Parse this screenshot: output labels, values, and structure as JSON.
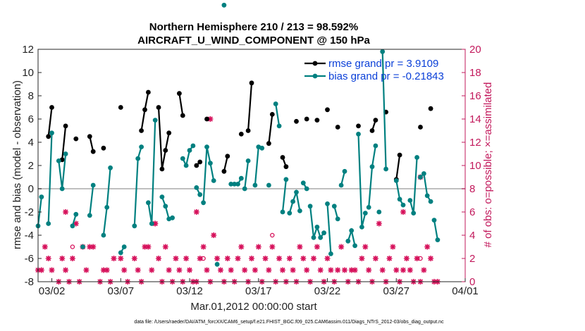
{
  "chart_data": {
    "type": "line",
    "title": [
      "Northern Hemisphere 210 / 213 = 98.592%",
      "AIRCRAFT_U_WIND_COMPONENT @ 150 hPa"
    ],
    "xlabel": "Mar.01,2012 00:00:00 start",
    "ylabel": "rmse and bias (model - observation)",
    "y2label": "# of obs: o=possible; ×=assimilated",
    "xlim": [
      1,
      32
    ],
    "ylim": [
      -8,
      12
    ],
    "y2lim": [
      0,
      20
    ],
    "x_ticks": [
      2,
      7,
      12,
      17,
      22,
      27,
      32
    ],
    "x_tick_labels": [
      "03/02",
      "03/07",
      "03/12",
      "03/17",
      "03/22",
      "03/27",
      "04/01"
    ],
    "y_ticks": [
      -8,
      -6,
      -4,
      -2,
      0,
      2,
      4,
      6,
      8,
      10,
      12
    ],
    "y_tick_labels": [
      "-8",
      "-6",
      "-4",
      "-2",
      "0",
      "2",
      "4",
      "6",
      "8",
      "10",
      "12"
    ],
    "y2_ticks": [
      0,
      2,
      4,
      6,
      8,
      10,
      12,
      14,
      16,
      18,
      20
    ],
    "y2_tick_labels": [
      "0",
      "2",
      "4",
      "6",
      "8",
      "10",
      "12",
      "14",
      "16",
      "18",
      "20"
    ],
    "legend_position": "top-right",
    "zero_line": 0,
    "footer": "data file: /Users/raeder/DAI/ATM_forcXX/CAM6_setup/f.e21.FHIST_BGC.f09_025.CAM6assim.011/Diags_NTrS_2012-03/obs_diag_output.nc",
    "colors": {
      "rmse": "#000000",
      "bias": "#008080",
      "obs": "#d6105a",
      "axis2": "#c2185b",
      "legend_text": "#0a3fd8",
      "zero": "#bfbfbf"
    },
    "series": [
      {
        "name": "rmse grand pr = 3.9109",
        "color": "#000000",
        "segments": [
          [
            [
              1.75,
              4.5
            ],
            [
              2.0,
              7.0
            ]
          ],
          [
            [
              2.75,
              2.5
            ],
            [
              3.0,
              5.4
            ]
          ],
          [
            [
              3.75,
              4.3
            ]
          ],
          [
            [
              4.75,
              4.5
            ],
            [
              5.0,
              3.2
            ]
          ],
          [
            [
              5.75,
              3.5
            ]
          ],
          [
            [
              7.0,
              7.0
            ]
          ],
          [
            [
              8.5,
              5.0
            ],
            [
              8.75,
              6.8
            ],
            [
              9.0,
              8.3
            ]
          ],
          [
            [
              9.75,
              7.0
            ],
            [
              10.0,
              1.7
            ],
            [
              10.25,
              3.3
            ],
            [
              10.5,
              4.8
            ]
          ],
          [
            [
              11.25,
              8.2
            ],
            [
              11.5,
              6.3
            ]
          ],
          [
            [
              12.5,
              2.0
            ],
            [
              12.75,
              2.3
            ]
          ],
          [
            [
              13.25,
              6.0
            ]
          ],
          [
            [
              14.5,
              1.5
            ],
            [
              14.75,
              2.8
            ]
          ],
          [
            [
              15.75,
              4.7
            ]
          ],
          [
            [
              16.25,
              5.0
            ],
            [
              16.5,
              9.1
            ]
          ],
          [
            [
              17.75,
              3.9
            ],
            [
              18.0,
              6.4
            ]
          ],
          [
            [
              18.75,
              2.7
            ],
            [
              19.0,
              1.9
            ]
          ],
          [
            [
              19.75,
              5.8
            ]
          ],
          [
            [
              20.5,
              6.0
            ]
          ],
          [
            [
              21.25,
              5.9
            ]
          ],
          [
            [
              22.0,
              6.8
            ]
          ],
          [
            [
              22.75,
              5.3
            ]
          ],
          [
            [
              24.25,
              5.4
            ]
          ],
          [
            [
              25.25,
              5.0
            ],
            [
              25.5,
              5.9
            ]
          ],
          [
            [
              26.25,
              6.6
            ]
          ],
          [
            [
              27.0,
              0.8
            ],
            [
              27.25,
              2.9
            ]
          ],
          [
            [
              28.75,
              5.3
            ]
          ],
          [
            [
              29.5,
              6.9
            ]
          ]
        ]
      },
      {
        "name": "bias grand pr = -0.21843",
        "color": "#008080",
        "segments": [
          [
            [
              1.0,
              -3.2
            ],
            [
              1.25,
              -0.7
            ]
          ],
          [
            [
              1.75,
              -3.0
            ],
            [
              2.0,
              4.8
            ]
          ],
          [
            [
              2.5,
              2.4
            ],
            [
              2.75,
              0.0
            ],
            [
              3.0,
              3.0
            ]
          ],
          [
            [
              3.5,
              -3.2
            ],
            [
              3.75,
              -2.2
            ]
          ],
          [
            [
              4.25,
              -5.0
            ]
          ],
          [
            [
              4.75,
              -2.3
            ],
            [
              5.0,
              0.3
            ]
          ],
          [
            [
              5.75,
              -4.0
            ],
            [
              6.0,
              -1.6
            ],
            [
              6.25,
              1.8
            ]
          ],
          [
            [
              7.0,
              -5.5
            ],
            [
              7.25,
              -5.0
            ]
          ],
          [
            [
              8.0,
              -3.2
            ],
            [
              8.25,
              2.6
            ],
            [
              8.5,
              3.6
            ]
          ],
          [
            [
              9.0,
              -1.2
            ],
            [
              9.25,
              -3.0
            ],
            [
              9.5,
              5.9
            ]
          ],
          [
            [
              10.0,
              -0.7
            ],
            [
              10.25,
              -1.5
            ],
            [
              10.5,
              -2.6
            ],
            [
              10.75,
              -2.5
            ]
          ],
          [
            [
              11.5,
              2.6
            ],
            [
              11.75,
              2.0
            ],
            [
              12.0,
              3.3
            ],
            [
              12.25,
              3.7
            ]
          ],
          [
            [
              12.5,
              0.1
            ],
            [
              12.75,
              -0.5
            ]
          ],
          [
            [
              13.0,
              -1.2
            ],
            [
              13.25,
              3.6
            ],
            [
              13.5,
              2.2
            ],
            [
              13.75,
              0.7
            ]
          ],
          [
            [
              14.0,
              -6.5
            ]
          ],
          [
            [
              14.5,
              15.8
            ]
          ],
          [
            [
              15.0,
              0.4
            ],
            [
              15.25,
              0.4
            ],
            [
              15.5,
              0.4
            ],
            [
              15.75,
              0.9
            ]
          ],
          [
            [
              16.0,
              0.0
            ],
            [
              16.25,
              2.4
            ]
          ],
          [
            [
              16.75,
              0.3
            ],
            [
              17.0,
              3.6
            ],
            [
              17.25,
              3.5
            ]
          ],
          [
            [
              17.75,
              0.3
            ]
          ],
          [
            [
              18.25,
              7.3
            ],
            [
              18.5,
              5.4
            ]
          ],
          [
            [
              18.75,
              -2.0
            ],
            [
              19.0,
              0.8
            ]
          ],
          [
            [
              19.25,
              -2.1
            ],
            [
              19.5,
              -1.1
            ],
            [
              19.75,
              -0.3
            ],
            [
              20.0,
              -1.9
            ]
          ],
          [
            [
              20.25,
              0.5
            ],
            [
              20.5,
              0.0
            ]
          ],
          [
            [
              20.75,
              -1.5
            ],
            [
              21.0,
              -4.2
            ],
            [
              21.25,
              -3.3
            ],
            [
              21.5,
              -4.2
            ],
            [
              21.75,
              -3.8
            ]
          ],
          [
            [
              22.0,
              -1.3
            ],
            [
              22.25,
              -5.6
            ]
          ],
          [
            [
              22.5,
              -1.5
            ],
            [
              22.75,
              -2.6
            ]
          ],
          [
            [
              23.0,
              0.3
            ],
            [
              23.25,
              1.5
            ]
          ],
          [
            [
              23.5,
              -4.5
            ],
            [
              23.75,
              -3.6
            ],
            [
              24.0,
              -4.9
            ]
          ],
          [
            [
              24.25,
              4.7
            ],
            [
              24.5,
              -3.3
            ],
            [
              24.75,
              -2.1
            ]
          ],
          [
            [
              25.0,
              -1.6
            ],
            [
              25.25,
              1.9
            ],
            [
              25.5,
              3.7
            ]
          ],
          [
            [
              25.75,
              -2.0
            ]
          ],
          [
            [
              26.0,
              11.8
            ],
            [
              26.25,
              1.7
            ]
          ],
          [
            [
              27.0,
              0.7
            ],
            [
              27.25,
              -0.9
            ],
            [
              27.5,
              -1.4
            ]
          ],
          [
            [
              28.0,
              -1.0
            ],
            [
              28.25,
              -2.1
            ],
            [
              28.5,
              2.7
            ]
          ],
          [
            [
              28.75,
              1.0
            ],
            [
              29.0,
              1.3
            ],
            [
              29.25,
              -0.6
            ],
            [
              29.5,
              -1.1
            ]
          ],
          [
            [
              29.75,
              -2.7
            ],
            [
              30.0,
              -4.4
            ]
          ]
        ]
      }
    ],
    "obs_assimilated": [
      [
        1.0,
        1
      ],
      [
        1.25,
        1
      ],
      [
        1.5,
        3
      ],
      [
        1.75,
        2
      ],
      [
        2.0,
        1
      ],
      [
        2.5,
        0
      ],
      [
        2.75,
        2
      ],
      [
        3.0,
        1
      ],
      [
        3.25,
        0
      ],
      [
        3.5,
        2
      ],
      [
        3.75,
        5
      ],
      [
        4.0,
        0
      ],
      [
        4.25,
        3
      ],
      [
        4.5,
        1
      ],
      [
        4.75,
        3
      ],
      [
        5.0,
        3
      ],
      [
        5.5,
        0
      ],
      [
        5.75,
        1
      ],
      [
        6.0,
        1
      ],
      [
        6.25,
        0
      ],
      [
        6.5,
        2
      ],
      [
        7.0,
        2
      ],
      [
        7.25,
        1
      ],
      [
        7.5,
        0
      ],
      [
        8.0,
        2
      ],
      [
        8.25,
        1
      ],
      [
        8.5,
        0
      ],
      [
        8.75,
        3
      ],
      [
        9.0,
        3
      ],
      [
        9.25,
        1
      ],
      [
        9.5,
        5
      ],
      [
        9.75,
        2
      ],
      [
        10.0,
        0
      ],
      [
        10.25,
        3
      ],
      [
        10.5,
        1
      ],
      [
        10.75,
        0
      ],
      [
        11.0,
        2
      ],
      [
        11.25,
        1
      ],
      [
        11.5,
        0
      ],
      [
        11.75,
        2
      ],
      [
        12.0,
        1
      ],
      [
        12.25,
        0
      ],
      [
        12.5,
        0
      ],
      [
        12.75,
        2
      ],
      [
        13.0,
        3
      ],
      [
        13.25,
        1
      ],
      [
        13.5,
        0
      ],
      [
        13.75,
        4
      ],
      [
        14.0,
        2
      ],
      [
        14.25,
        1
      ],
      [
        14.5,
        0
      ],
      [
        14.75,
        2
      ],
      [
        15.0,
        1
      ],
      [
        15.25,
        0
      ],
      [
        15.5,
        2
      ],
      [
        15.75,
        3
      ],
      [
        16.0,
        1
      ],
      [
        16.25,
        0
      ],
      [
        16.5,
        2
      ],
      [
        16.75,
        1
      ],
      [
        17.0,
        3
      ],
      [
        17.25,
        0
      ],
      [
        17.5,
        2
      ],
      [
        17.75,
        1
      ],
      [
        18.0,
        3
      ],
      [
        18.25,
        0
      ],
      [
        18.5,
        2
      ],
      [
        18.75,
        1
      ],
      [
        19.0,
        0
      ],
      [
        19.25,
        2
      ],
      [
        19.5,
        1
      ],
      [
        19.75,
        0
      ],
      [
        20.0,
        3
      ],
      [
        20.25,
        2
      ],
      [
        20.5,
        1
      ],
      [
        20.75,
        0
      ],
      [
        21.0,
        2
      ],
      [
        21.25,
        3
      ],
      [
        21.5,
        1
      ],
      [
        21.75,
        0
      ],
      [
        22.0,
        2
      ],
      [
        22.25,
        1
      ],
      [
        22.5,
        0
      ],
      [
        22.75,
        1
      ],
      [
        23.0,
        3
      ],
      [
        23.25,
        1
      ],
      [
        23.5,
        0
      ],
      [
        23.75,
        1
      ],
      [
        24.0,
        1
      ],
      [
        24.25,
        0
      ],
      [
        24.5,
        2
      ],
      [
        24.75,
        3
      ],
      [
        25.0,
        1
      ],
      [
        25.25,
        0
      ],
      [
        25.5,
        2
      ],
      [
        25.75,
        5
      ],
      [
        26.0,
        1
      ],
      [
        26.25,
        0
      ],
      [
        26.5,
        2
      ],
      [
        26.75,
        3
      ],
      [
        27.0,
        1
      ],
      [
        27.25,
        0
      ],
      [
        27.5,
        1
      ],
      [
        27.75,
        2
      ],
      [
        28.0,
        1
      ],
      [
        28.25,
        0
      ],
      [
        28.5,
        2
      ],
      [
        28.75,
        0
      ],
      [
        29.0,
        1
      ],
      [
        29.25,
        3
      ],
      [
        29.5,
        2
      ],
      [
        29.75,
        0
      ],
      [
        30.0,
        0
      ],
      [
        3.0,
        6
      ],
      [
        9.5,
        5
      ],
      [
        12.5,
        6
      ],
      [
        13.5,
        14
      ],
      [
        27.5,
        6
      ],
      [
        28.75,
        9
      ]
    ],
    "obs_possible": [
      [
        3.5,
        3
      ],
      [
        13.0,
        2
      ],
      [
        18.0,
        4
      ],
      [
        28.75,
        2
      ]
    ]
  }
}
